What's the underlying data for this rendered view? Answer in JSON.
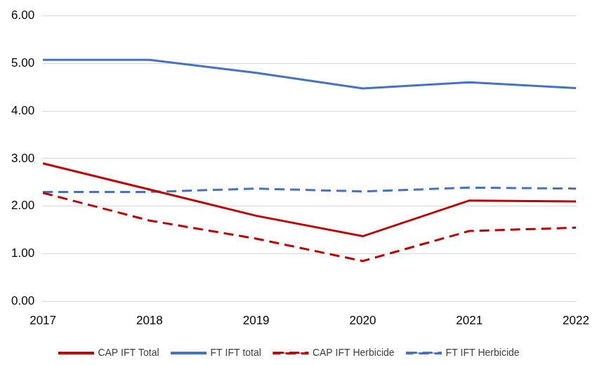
{
  "chart_data": {
    "type": "line",
    "categories": [
      "2017",
      "2018",
      "2019",
      "2020",
      "2021",
      "2022"
    ],
    "series": [
      {
        "name": "CAP IFT Total",
        "color": "#c00000",
        "line_style": "solid",
        "values": [
          2.9,
          2.35,
          1.8,
          1.37,
          2.12,
          2.1
        ]
      },
      {
        "name": "FT IFT total",
        "color": "#4472c4",
        "line_style": "solid",
        "values": [
          5.07,
          5.07,
          4.8,
          4.47,
          4.6,
          4.48
        ]
      },
      {
        "name": "CAP IFT Herbicide",
        "color": "#c00000",
        "line_style": "dashed",
        "values": [
          2.28,
          1.7,
          1.32,
          0.85,
          1.48,
          1.55
        ]
      },
      {
        "name": "FT IFT Herbicide",
        "color": "#4472c4",
        "line_style": "dashed",
        "values": [
          2.3,
          2.3,
          2.37,
          2.31,
          2.39,
          2.37
        ]
      }
    ],
    "ylim": [
      0,
      6
    ],
    "yticks": [
      {
        "value": 0,
        "label": "0.00"
      },
      {
        "value": 1,
        "label": "1.00"
      },
      {
        "value": 2,
        "label": "2.00"
      },
      {
        "value": 3,
        "label": "3.00"
      },
      {
        "value": 4,
        "label": "4.00"
      },
      {
        "value": 5,
        "label": "5.00"
      },
      {
        "value": 6,
        "label": "6.00"
      }
    ],
    "grid": true,
    "legend": "bottom"
  }
}
